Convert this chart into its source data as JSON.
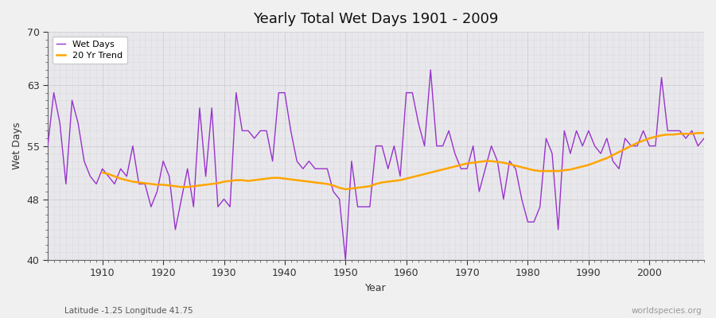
{
  "title": "Yearly Total Wet Days 1901 - 2009",
  "xlabel": "Year",
  "ylabel": "Wet Days",
  "subtitle": "Latitude -1.25 Longitude 41.75",
  "watermark": "worldspecies.org",
  "ylim": [
    40,
    70
  ],
  "yticks": [
    40,
    48,
    55,
    63,
    70
  ],
  "bg_color": "#f0f0f0",
  "plot_bg_color": "#e8e8ec",
  "wet_days_color": "#9932CC",
  "trend_color": "#FFA500",
  "years": [
    1901,
    1902,
    1903,
    1904,
    1905,
    1906,
    1907,
    1908,
    1909,
    1910,
    1911,
    1912,
    1913,
    1914,
    1915,
    1916,
    1917,
    1918,
    1919,
    1920,
    1921,
    1922,
    1923,
    1924,
    1925,
    1926,
    1927,
    1928,
    1929,
    1930,
    1931,
    1932,
    1933,
    1934,
    1935,
    1936,
    1937,
    1938,
    1939,
    1940,
    1941,
    1942,
    1943,
    1944,
    1945,
    1946,
    1947,
    1948,
    1949,
    1950,
    1951,
    1952,
    1953,
    1954,
    1955,
    1956,
    1957,
    1958,
    1959,
    1960,
    1961,
    1962,
    1963,
    1964,
    1965,
    1966,
    1967,
    1968,
    1969,
    1970,
    1971,
    1972,
    1973,
    1974,
    1975,
    1976,
    1977,
    1978,
    1979,
    1980,
    1981,
    1982,
    1983,
    1984,
    1985,
    1986,
    1987,
    1988,
    1989,
    1990,
    1991,
    1992,
    1993,
    1994,
    1995,
    1996,
    1997,
    1998,
    1999,
    2000,
    2001,
    2002,
    2003,
    2004,
    2005,
    2006,
    2007,
    2008,
    2009
  ],
  "wet_days": [
    55,
    62,
    58,
    50,
    61,
    58,
    53,
    51,
    50,
    52,
    51,
    50,
    52,
    51,
    55,
    50,
    50,
    47,
    49,
    53,
    51,
    44,
    48,
    52,
    47,
    60,
    51,
    60,
    47,
    48,
    47,
    62,
    57,
    57,
    56,
    57,
    57,
    53,
    62,
    62,
    57,
    53,
    52,
    53,
    52,
    52,
    52,
    49,
    48,
    40,
    53,
    47,
    47,
    47,
    55,
    55,
    52,
    55,
    51,
    62,
    62,
    58,
    55,
    65,
    55,
    55,
    57,
    54,
    52,
    52,
    55,
    49,
    52,
    55,
    53,
    48,
    53,
    52,
    48,
    45,
    45,
    47,
    56,
    54,
    44,
    57,
    54,
    57,
    55,
    57,
    55,
    54,
    56,
    53,
    52,
    56,
    55,
    55,
    57,
    55,
    55,
    64,
    57,
    57,
    57,
    56,
    57,
    55,
    56
  ],
  "trend_years": [
    1910,
    1911,
    1912,
    1913,
    1914,
    1915,
    1916,
    1917,
    1918,
    1919,
    1920,
    1921,
    1922,
    1923,
    1924,
    1925,
    1926,
    1927,
    1928,
    1929,
    1930,
    1931,
    1932,
    1933,
    1934,
    1935,
    1936,
    1937,
    1938,
    1939,
    1940,
    1941,
    1942,
    1943,
    1944,
    1945,
    1946,
    1947,
    1948,
    1949,
    1950,
    1951,
    1952,
    1953,
    1954,
    1955,
    1956,
    1957,
    1958,
    1959,
    1960,
    1961,
    1962,
    1963,
    1964,
    1965,
    1966,
    1967,
    1968,
    1969,
    1970,
    1971,
    1972,
    1973,
    1974,
    1975,
    1976,
    1977,
    1978,
    1979,
    1980,
    1981,
    1982,
    1983,
    1984,
    1985,
    1986,
    1987,
    1988,
    1989,
    1990,
    1991,
    1992,
    1993,
    1994,
    1995,
    1996,
    1997,
    1998,
    1999,
    2000,
    2001,
    2002,
    2003,
    2004,
    2005,
    2006,
    2007,
    2008,
    2009
  ],
  "trend_values": [
    51.5,
    51.3,
    51.0,
    50.7,
    50.5,
    50.3,
    50.2,
    50.1,
    50.0,
    49.9,
    49.9,
    49.8,
    49.7,
    49.6,
    49.6,
    49.7,
    49.8,
    49.9,
    50.0,
    50.1,
    50.3,
    50.4,
    50.5,
    50.5,
    50.4,
    50.5,
    50.6,
    50.7,
    50.8,
    50.8,
    50.7,
    50.6,
    50.5,
    50.4,
    50.3,
    50.2,
    50.1,
    50.0,
    49.8,
    49.5,
    49.3,
    49.4,
    49.5,
    49.6,
    49.7,
    50.0,
    50.2,
    50.3,
    50.4,
    50.5,
    50.7,
    50.9,
    51.1,
    51.3,
    51.5,
    51.7,
    51.9,
    52.1,
    52.3,
    52.5,
    52.7,
    52.8,
    52.9,
    53.0,
    53.0,
    52.9,
    52.8,
    52.6,
    52.4,
    52.2,
    52.0,
    51.8,
    51.7,
    51.7,
    51.7,
    51.7,
    51.8,
    51.9,
    52.1,
    52.3,
    52.5,
    52.8,
    53.1,
    53.4,
    53.8,
    54.2,
    54.6,
    55.0,
    55.4,
    55.7,
    56.0,
    56.2,
    56.4,
    56.5,
    56.5,
    56.6,
    56.6,
    56.6,
    56.7,
    56.7
  ]
}
